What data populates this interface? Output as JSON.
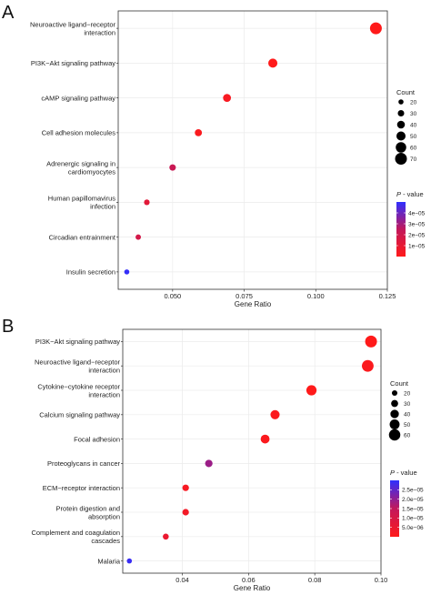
{
  "chart_data": [
    {
      "panel": "A",
      "type": "scatter",
      "xlabel": "Gene Ratio",
      "ylabel": "",
      "xlim": [
        0.031,
        0.125
      ],
      "xticks": [
        0.05,
        0.075,
        0.1,
        0.125
      ],
      "xtick_labels": [
        "0.050",
        "0.075",
        "0.100",
        "0.125"
      ],
      "grid": true,
      "legend_position": "right",
      "categories": [
        [
          "Neuroactive ligand−receptor",
          "interaction"
        ],
        [
          "PI3K−Akt signaling pathway"
        ],
        [
          "cAMP signaling pathway"
        ],
        [
          "Cell adhesion molecules"
        ],
        [
          "Adrenergic signaling in",
          "cardiomyocytes"
        ],
        [
          "Human papillomavirus",
          "infection"
        ],
        [
          "Circadian entrainment"
        ],
        [
          "Insulin secretion"
        ]
      ],
      "points": [
        {
          "x": 0.121,
          "count": 70,
          "p": 1e-07
        },
        {
          "x": 0.085,
          "count": 50,
          "p": 1e-07
        },
        {
          "x": 0.069,
          "count": 41,
          "p": 3e-06
        },
        {
          "x": 0.059,
          "count": 35,
          "p": 2e-06
        },
        {
          "x": 0.05,
          "count": 30,
          "p": 2.2e-05
        },
        {
          "x": 0.041,
          "count": 24,
          "p": 1.2e-05
        },
        {
          "x": 0.038,
          "count": 22,
          "p": 1.8e-05
        },
        {
          "x": 0.034,
          "count": 20,
          "p": 4.9e-05
        }
      ],
      "size_legend": {
        "title": "Count",
        "values": [
          20,
          30,
          40,
          50,
          60,
          70
        ],
        "range": [
          20,
          70
        ]
      },
      "color_legend": {
        "title_italic": "P",
        "title_rest": " - value",
        "ticks": [
          4e-05,
          3e-05,
          2e-05,
          1e-05
        ],
        "tick_labels": [
          "4e−05",
          "3e−05",
          "2e−05",
          "1e−05"
        ],
        "range": [
          0,
          5e-05
        ],
        "low_color": "#ff1a1a",
        "mid_color": "#c2185b",
        "high_color": "#2f2fff"
      }
    },
    {
      "panel": "B",
      "type": "scatter",
      "xlabel": "Gene Ratio",
      "ylabel": "",
      "xlim": [
        0.022,
        0.1
      ],
      "xticks": [
        0.04,
        0.06,
        0.08,
        0.1
      ],
      "xtick_labels": [
        "0.04",
        "0.06",
        "0.08",
        "0.10"
      ],
      "grid": true,
      "legend_position": "right",
      "categories": [
        [
          "PI3K−Akt signaling pathway"
        ],
        [
          "Neuroactive ligand−receptor",
          "interaction"
        ],
        [
          "Cytokine−cytokine receptor",
          "interaction"
        ],
        [
          "Calcium signaling pathway"
        ],
        [
          "Focal adhesion"
        ],
        [
          "Proteoglycans in cancer"
        ],
        [
          "ECM−receptor interaction"
        ],
        [
          "Protein digestion and",
          "absorption"
        ],
        [
          "Complement and coagulation",
          "cascades"
        ],
        [
          "Malaria"
        ]
      ],
      "points": [
        {
          "x": 0.097,
          "count": 63,
          "p": 1e-07
        },
        {
          "x": 0.096,
          "count": 62,
          "p": 1e-06
        },
        {
          "x": 0.079,
          "count": 52,
          "p": 1e-07
        },
        {
          "x": 0.068,
          "count": 45,
          "p": 1e-06
        },
        {
          "x": 0.065,
          "count": 43,
          "p": 1e-06
        },
        {
          "x": 0.048,
          "count": 33,
          "p": 1.9e-05
        },
        {
          "x": 0.041,
          "count": 27,
          "p": 2e-06
        },
        {
          "x": 0.041,
          "count": 27,
          "p": 3e-06
        },
        {
          "x": 0.035,
          "count": 23,
          "p": 5e-06
        },
        {
          "x": 0.024,
          "count": 17,
          "p": 2.9e-05
        }
      ],
      "size_legend": {
        "title": "Count",
        "values": [
          20,
          30,
          40,
          50,
          60
        ],
        "range": [
          17,
          63
        ]
      },
      "color_legend": {
        "title_italic": "P",
        "title_rest": " - value",
        "ticks": [
          2.5e-05,
          2e-05,
          1.5e-05,
          1e-05,
          5e-06
        ],
        "tick_labels": [
          "2.5e−05",
          "2.0e−05",
          "1.5e−05",
          "1.0e−05",
          "5.0e−06"
        ],
        "range": [
          0,
          3e-05
        ],
        "low_color": "#ff1a1a",
        "mid_color": "#c2185b",
        "high_color": "#2f2fff"
      }
    }
  ]
}
